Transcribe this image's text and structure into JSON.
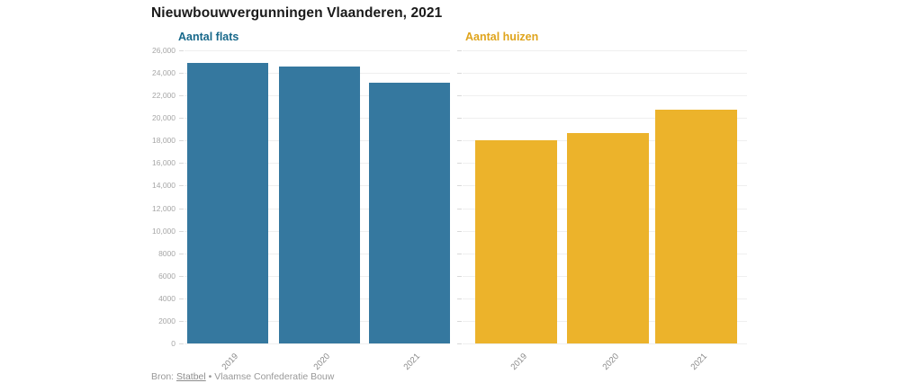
{
  "title": "Nieuwbouwvergunningen Vlaanderen, 2021",
  "footer": {
    "prefix": "Bron:",
    "link_label": "Statbel",
    "separator": "•",
    "suffix": "Vlaamse Confederatie Bouw"
  },
  "colors": {
    "flats_bar": "#35789f",
    "flats_header": "#17688a",
    "huizen_bar": "#ecb32b",
    "huizen_header": "#dfa41c",
    "gridline": "#efefef",
    "axis_text": "#a6a6a6"
  },
  "chart_data": {
    "type": "bar",
    "title": "Nieuwbouwvergunningen Vlaanderen, 2021",
    "layout": "two-panel-split",
    "categories": [
      "2019",
      "2020",
      "2021"
    ],
    "series": [
      {
        "name": "Aantal flats",
        "values": [
          24900,
          24550,
          23100
        ],
        "bar_color": "#35789f",
        "label_color": "#17688a"
      },
      {
        "name": "Aantal huizen",
        "values": [
          18000,
          18700,
          20700
        ],
        "bar_color": "#ecb32b",
        "label_color": "#dfa41c"
      }
    ],
    "xlabel": "",
    "ylabel": "",
    "ylim": [
      0,
      26000
    ],
    "ytick_step": 2000,
    "ytick_labels": [
      "0",
      "2000",
      "4000",
      "6000",
      "8000",
      "10,000",
      "12,000",
      "14,000",
      "16,000",
      "18,000",
      "20,000",
      "22,000",
      "24,000",
      "26,000"
    ],
    "grid": true,
    "legend_position": "panel-headers",
    "source": "Bron: Statbel • Vlaamse Confederatie Bouw"
  }
}
